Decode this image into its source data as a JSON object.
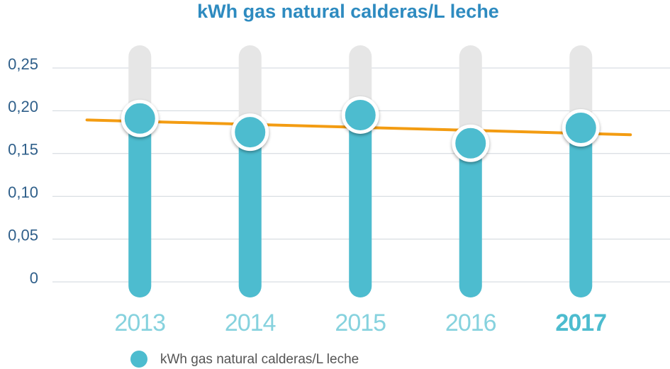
{
  "chart_data": {
    "type": "bar",
    "title": "kWh gas natural calderas/L leche",
    "categories": [
      "2013",
      "2014",
      "2015",
      "2016",
      "2017"
    ],
    "series": [
      {
        "name": "kWh gas natural calderas/L leche",
        "color": "#4dbccf",
        "values": [
          0.191,
          0.175,
          0.195,
          0.162,
          0.18
        ]
      }
    ],
    "ylim": [
      0,
      0.25
    ],
    "yticks": [
      0,
      {
        "value": 0.05,
        "label": "0,05"
      },
      {
        "value": 0.1,
        "label": "0,10"
      },
      {
        "value": 0.15,
        "label": "0,15"
      },
      {
        "value": 0.2,
        "label": "0,20"
      },
      {
        "value": 0.25,
        "label": "0,25"
      }
    ],
    "grid": true,
    "trendline": true,
    "trendline_color": "#f39c12",
    "legend": "bottom"
  }
}
